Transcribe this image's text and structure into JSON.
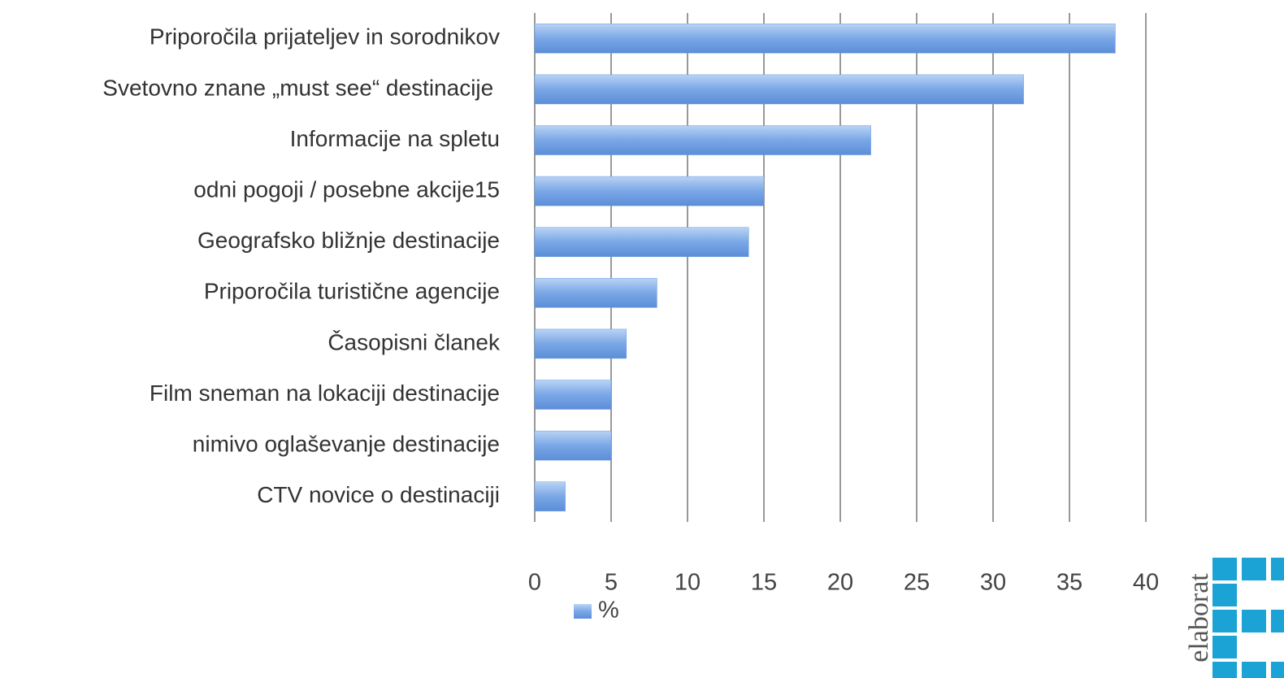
{
  "chart_data": {
    "type": "bar",
    "orientation": "horizontal",
    "categories": [
      "Priporočila prijateljev in sorodnikov",
      "Svetovno znane „must see“ destinacije ",
      "Informacije na spletu",
      "odni pogoji / posebne akcije15",
      "Geografsko bližnje destinacije",
      "Priporočila turistične agencije",
      "Časopisni članek",
      "Film sneman na lokaciji destinacije",
      "nimivo oglaševanje destinacije",
      "CTV novice o destinaciji"
    ],
    "series": [
      {
        "name": "%",
        "color": "#6a9be0",
        "values": [
          38,
          32,
          22,
          15,
          14,
          8,
          6,
          5,
          5,
          2
        ]
      }
    ],
    "xlim": [
      0,
      40
    ],
    "xticks": [
      0,
      5,
      10,
      15,
      20,
      25,
      30,
      35,
      40
    ],
    "grid": true,
    "legend": "bottom",
    "watermark": "elaborat"
  }
}
